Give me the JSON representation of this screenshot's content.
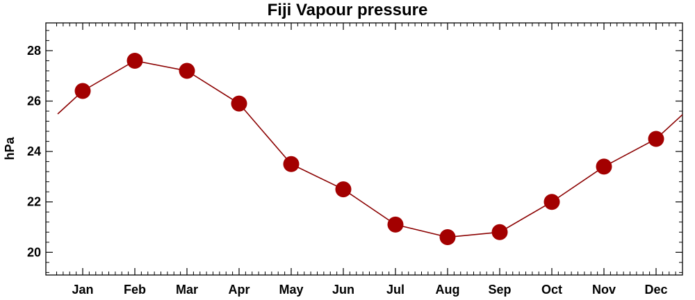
{
  "chart_data": {
    "type": "line",
    "title": "Fiji Vapour pressure",
    "xlabel": "",
    "ylabel": "hPa",
    "categories": [
      "Jan",
      "Feb",
      "Mar",
      "Apr",
      "May",
      "Jun",
      "Jul",
      "Aug",
      "Sep",
      "Oct",
      "Nov",
      "Dec"
    ],
    "series": [
      {
        "values": [
          26.4,
          27.6,
          27.2,
          25.9,
          23.5,
          22.5,
          21.1,
          20.6,
          20.8,
          22.0,
          23.4,
          24.5
        ]
      }
    ],
    "ylim": [
      19.1,
      29.1
    ],
    "yticks": [
      20,
      22,
      24,
      26,
      28
    ],
    "ytick_labels": [
      "20",
      "22",
      "24",
      "26",
      "28"
    ],
    "cyclic": true,
    "grid": false,
    "colors": {
      "line": "#8b0000",
      "marker": "#a30000",
      "axis": "#000000"
    }
  }
}
